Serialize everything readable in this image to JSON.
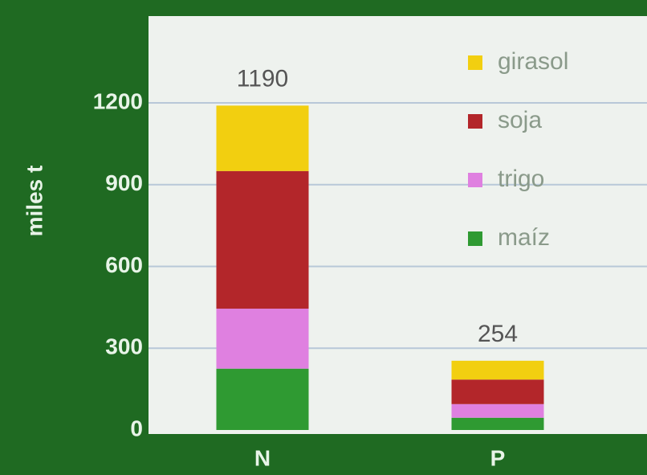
{
  "chart_data": {
    "type": "stacked_bar",
    "y_label": "miles t",
    "categories": [
      "N",
      "P"
    ],
    "series": [
      {
        "name": "girasol",
        "color": "#f2cf10",
        "values": [
          240,
          69
        ]
      },
      {
        "name": "soja",
        "color": "#b3262a",
        "values": [
          505,
          90
        ]
      },
      {
        "name": "trigo",
        "color": "#df80e0",
        "values": [
          220,
          50
        ]
      },
      {
        "name": "maíz",
        "color": "#2f9a32",
        "values": [
          225,
          45
        ]
      }
    ],
    "totals": [
      1190,
      254
    ],
    "ylim": [
      0,
      1200
    ],
    "yticks": [
      0,
      300,
      600,
      900,
      1200
    ],
    "grid": true
  }
}
